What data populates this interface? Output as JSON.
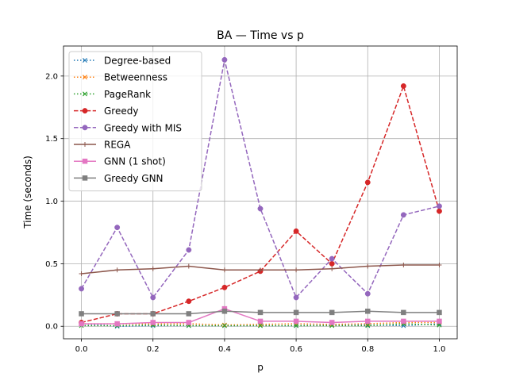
{
  "chart_data": {
    "type": "line",
    "title": "BA — Time vs p",
    "xlabel": "p",
    "ylabel": "Time (seconds)",
    "xlim": [
      -0.05,
      1.05
    ],
    "ylim": [
      -0.1,
      2.24
    ],
    "grid": true,
    "legend_position": "top-left",
    "x": [
      0.0,
      0.1,
      0.2,
      0.3,
      0.4,
      0.5,
      0.6,
      0.7,
      0.8,
      0.9,
      1.0
    ],
    "x_ticks": [
      0.0,
      0.2,
      0.4,
      0.6,
      0.8,
      1.0
    ],
    "x_tick_labels": [
      "0.0",
      "0.2",
      "0.4",
      "0.6",
      "0.8",
      "1.0"
    ],
    "y_ticks": [
      0.0,
      0.5,
      1.0,
      1.5,
      2.0
    ],
    "y_tick_labels": [
      "0.0",
      "0.5",
      "1.0",
      "1.5",
      "2.0"
    ],
    "series": [
      {
        "name": "Degree-based",
        "color": "#1f77b4",
        "linestyle": "dotted",
        "marker": "x",
        "values": [
          0.02,
          0.0,
          0.005,
          0.005,
          0.005,
          0.005,
          0.005,
          0.01,
          0.01,
          0.005,
          0.02
        ]
      },
      {
        "name": "Betweenness",
        "color": "#ff7f0e",
        "linestyle": "dotted",
        "marker": "x",
        "values": [
          0.02,
          0.02,
          0.02,
          0.02,
          0.01,
          0.015,
          0.02,
          0.015,
          0.02,
          0.03,
          0.03
        ]
      },
      {
        "name": "PageRank",
        "color": "#2ca02c",
        "linestyle": "dotted",
        "marker": "x",
        "values": [
          0.005,
          0.005,
          0.01,
          0.005,
          0.005,
          0.005,
          0.005,
          0.005,
          0.005,
          0.02,
          0.01
        ]
      },
      {
        "name": "Greedy",
        "color": "#d62728",
        "linestyle": "dashed",
        "marker": "o",
        "values": [
          0.03,
          0.1,
          0.1,
          0.2,
          0.31,
          0.44,
          0.76,
          0.5,
          1.15,
          1.92,
          0.92
        ]
      },
      {
        "name": "Greedy with MIS",
        "color": "#9467bd",
        "linestyle": "dashed",
        "marker": "o",
        "values": [
          0.3,
          0.79,
          0.23,
          0.61,
          2.13,
          0.94,
          0.23,
          0.54,
          0.26,
          0.89,
          0.96
        ]
      },
      {
        "name": "REGA",
        "color": "#8c564b",
        "linestyle": "solid",
        "marker": "+",
        "values": [
          0.42,
          0.45,
          0.46,
          0.48,
          0.45,
          0.45,
          0.45,
          0.46,
          0.48,
          0.49,
          0.49
        ]
      },
      {
        "name": "GNN (1 shot)",
        "color": "#e377c2",
        "linestyle": "solid",
        "marker": "s",
        "values": [
          0.02,
          0.02,
          0.03,
          0.03,
          0.14,
          0.04,
          0.04,
          0.03,
          0.04,
          0.04,
          0.04
        ]
      },
      {
        "name": "Greedy GNN",
        "color": "#7f7f7f",
        "linestyle": "solid",
        "marker": "s",
        "values": [
          0.1,
          0.1,
          0.1,
          0.1,
          0.12,
          0.11,
          0.11,
          0.11,
          0.12,
          0.11,
          0.11
        ]
      }
    ]
  }
}
